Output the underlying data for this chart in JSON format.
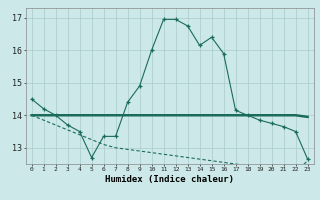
{
  "xlabel": "Humidex (Indice chaleur)",
  "bg_color": "#cce8e8",
  "grid_color": "#aacccc",
  "line_color": "#1a6b5a",
  "x_values": [
    0,
    1,
    2,
    3,
    4,
    5,
    6,
    7,
    8,
    9,
    10,
    11,
    12,
    13,
    14,
    15,
    16,
    17,
    18,
    19,
    20,
    21,
    22,
    23
  ],
  "series1": [
    14.5,
    14.2,
    14.0,
    13.7,
    13.5,
    12.7,
    13.35,
    13.35,
    14.4,
    14.9,
    16.0,
    16.95,
    16.95,
    16.75,
    16.15,
    16.4,
    15.9,
    14.15,
    14.0,
    13.85,
    13.75,
    13.65,
    13.5,
    12.65
  ],
  "series2": [
    14.0,
    14.0,
    14.0,
    14.0,
    14.0,
    14.0,
    14.0,
    14.0,
    14.0,
    14.0,
    14.0,
    14.0,
    14.0,
    14.0,
    14.0,
    14.0,
    14.0,
    14.0,
    14.0,
    14.0,
    14.0,
    14.0,
    14.0,
    13.95
  ],
  "series3": [
    14.0,
    13.85,
    13.7,
    13.55,
    13.4,
    13.25,
    13.1,
    13.0,
    12.95,
    12.9,
    12.85,
    12.8,
    12.75,
    12.7,
    12.65,
    12.6,
    12.55,
    12.5,
    12.45,
    12.4,
    12.35,
    12.3,
    12.25,
    12.6
  ],
  "ylim": [
    12.5,
    17.3
  ],
  "xlim": [
    -0.5,
    23.5
  ],
  "yticks": [
    13,
    14,
    15,
    16,
    17
  ],
  "xticks": [
    0,
    1,
    2,
    3,
    4,
    5,
    6,
    7,
    8,
    9,
    10,
    11,
    12,
    13,
    14,
    15,
    16,
    17,
    18,
    19,
    20,
    21,
    22,
    23
  ]
}
